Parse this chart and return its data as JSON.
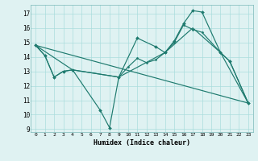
{
  "background_color": "#dff2f2",
  "grid_color": "#aadddd",
  "line_color": "#1e7a6e",
  "xlabel": "Humidex (Indice chaleur)",
  "xlim": [
    -0.5,
    23.5
  ],
  "ylim": [
    8.8,
    17.6
  ],
  "yticks": [
    9,
    10,
    11,
    12,
    13,
    14,
    15,
    16,
    17
  ],
  "xticks": [
    0,
    1,
    2,
    3,
    4,
    5,
    6,
    7,
    8,
    9,
    10,
    11,
    12,
    13,
    14,
    15,
    16,
    17,
    18,
    19,
    20,
    21,
    22,
    23
  ],
  "line1_x": [
    0,
    1,
    2,
    3,
    4,
    7,
    8,
    9,
    11,
    13,
    14,
    15,
    16,
    17,
    18,
    20,
    21,
    23
  ],
  "line1_y": [
    14.8,
    14.1,
    12.6,
    13.0,
    13.1,
    10.3,
    9.1,
    12.6,
    15.3,
    14.7,
    14.3,
    15.1,
    16.3,
    17.2,
    17.1,
    14.3,
    13.7,
    10.8
  ],
  "line2_x": [
    0,
    1,
    2,
    3,
    4,
    9,
    10,
    11,
    12,
    13,
    14,
    15,
    16,
    17,
    18,
    20,
    21,
    23
  ],
  "line2_y": [
    14.8,
    14.1,
    12.6,
    13.0,
    13.1,
    12.6,
    13.3,
    13.9,
    13.6,
    13.8,
    14.3,
    15.0,
    16.2,
    15.9,
    15.7,
    14.3,
    13.7,
    10.8
  ],
  "line3_x": [
    0,
    4,
    9,
    14,
    17,
    20,
    23
  ],
  "line3_y": [
    14.8,
    13.1,
    12.6,
    14.3,
    16.0,
    14.3,
    10.8
  ],
  "line4_x": [
    0,
    23
  ],
  "line4_y": [
    14.8,
    10.8
  ]
}
